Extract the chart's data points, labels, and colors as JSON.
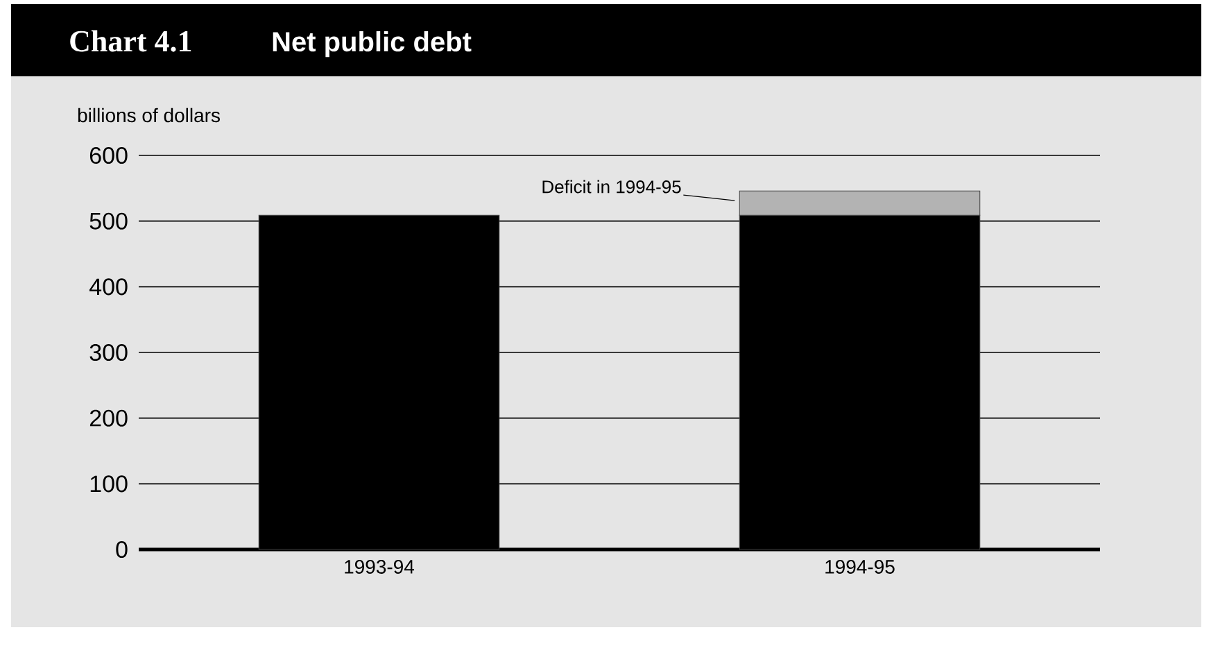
{
  "chart_data": {
    "type": "bar",
    "title": "Chart 4.1",
    "subtitle": "Net public debt",
    "ylabel": "billions of dollars",
    "categories": [
      "1993-94",
      "1994-95"
    ],
    "series": [
      {
        "color": "#000000",
        "values": [
          509,
          509
        ]
      },
      {
        "color": "#b3b3b3",
        "values": [
          null,
          37
        ]
      }
    ],
    "stacked": true,
    "ylim": [
      0,
      600
    ],
    "yticks": [
      0,
      100,
      200,
      300,
      400,
      500,
      600
    ],
    "grid": "y",
    "annotations": [
      "Deficit in 1994-95"
    ]
  }
}
